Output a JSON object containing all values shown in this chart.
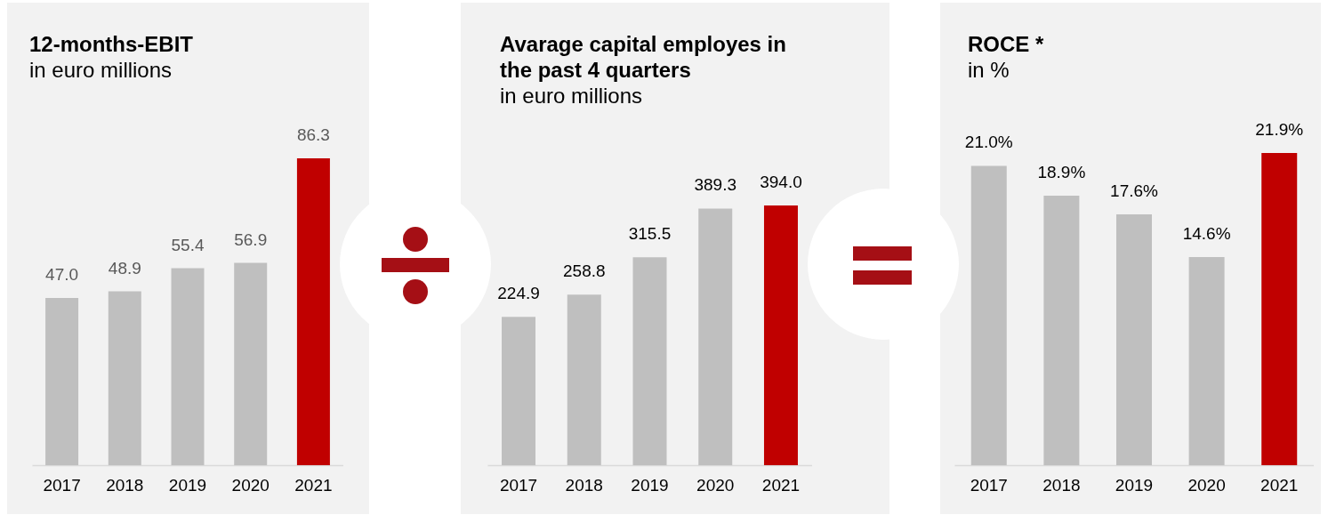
{
  "chart_data": [
    {
      "type": "bar",
      "title": "12-months-EBIT",
      "subtitle": "in euro millions",
      "categories": [
        "2017",
        "2018",
        "2019",
        "2020",
        "2021"
      ],
      "values": [
        47.0,
        48.9,
        55.4,
        56.9,
        86.3
      ],
      "colors": [
        "#bfbfbf",
        "#bfbfbf",
        "#bfbfbf",
        "#bfbfbf",
        "#c00000"
      ],
      "value_labels": [
        "47.0",
        "48.9",
        "55.4",
        "56.9",
        "86.3"
      ]
    },
    {
      "type": "bar",
      "title": "Avarage capital employes in the past 4 quarters",
      "subtitle": "in euro millions",
      "categories": [
        "2017",
        "2018",
        "2019",
        "2020",
        "2021"
      ],
      "values": [
        224.9,
        258.8,
        315.5,
        389.3,
        394.0
      ],
      "colors": [
        "#bfbfbf",
        "#bfbfbf",
        "#bfbfbf",
        "#bfbfbf",
        "#c00000"
      ],
      "value_labels": [
        "224.9",
        "258.8",
        "315.5",
        "389.3",
        "394.0"
      ]
    },
    {
      "type": "bar",
      "title": "ROCE *",
      "subtitle": "in %",
      "categories": [
        "2017",
        "2018",
        "2019",
        "2020",
        "2021"
      ],
      "values": [
        21.0,
        18.9,
        17.6,
        14.6,
        21.9
      ],
      "colors": [
        "#bfbfbf",
        "#bfbfbf",
        "#bfbfbf",
        "#bfbfbf",
        "#c00000"
      ],
      "value_labels": [
        "21.0%",
        "18.9%",
        "17.6%",
        "14.6%",
        "21.9%"
      ]
    }
  ]
}
